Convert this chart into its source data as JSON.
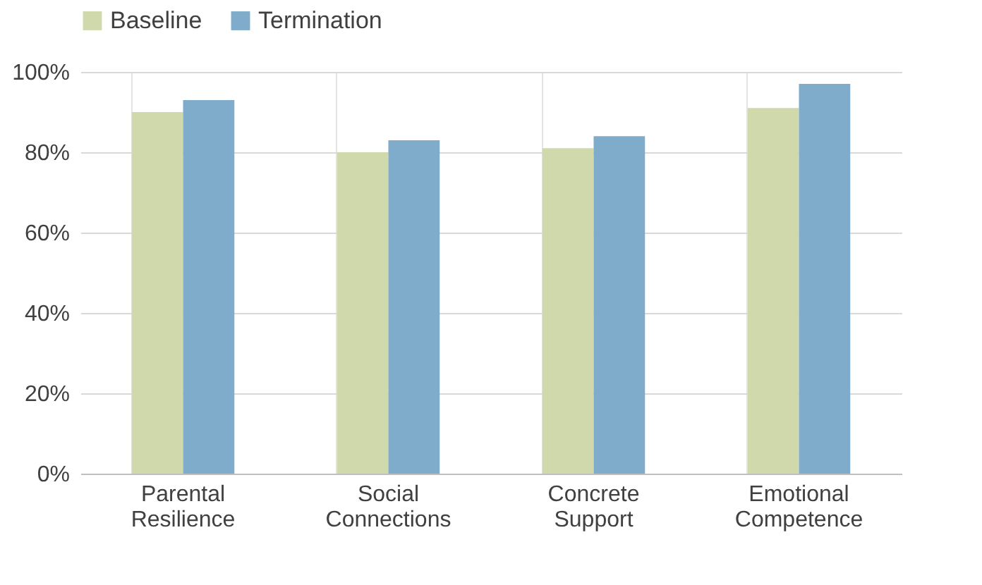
{
  "chart_data": {
    "type": "bar",
    "categories": [
      "Parental Resilience",
      "Social Connections",
      "Concrete Support",
      "Emotional Competence"
    ],
    "series": [
      {
        "name": "Baseline",
        "color": "#d0d9ac",
        "values": [
          90,
          80,
          81,
          91
        ]
      },
      {
        "name": "Termination",
        "color": "#7facca",
        "values": [
          93,
          83,
          84,
          97
        ]
      }
    ],
    "ylim": [
      0,
      100
    ],
    "yticks": [
      {
        "value": 0,
        "label": "0%"
      },
      {
        "value": 20,
        "label": "20%"
      },
      {
        "value": 40,
        "label": "40%"
      },
      {
        "value": 60,
        "label": "60%"
      },
      {
        "value": 80,
        "label": "80%"
      },
      {
        "value": 100,
        "label": "100%"
      }
    ],
    "grid": true,
    "legend": "top"
  }
}
